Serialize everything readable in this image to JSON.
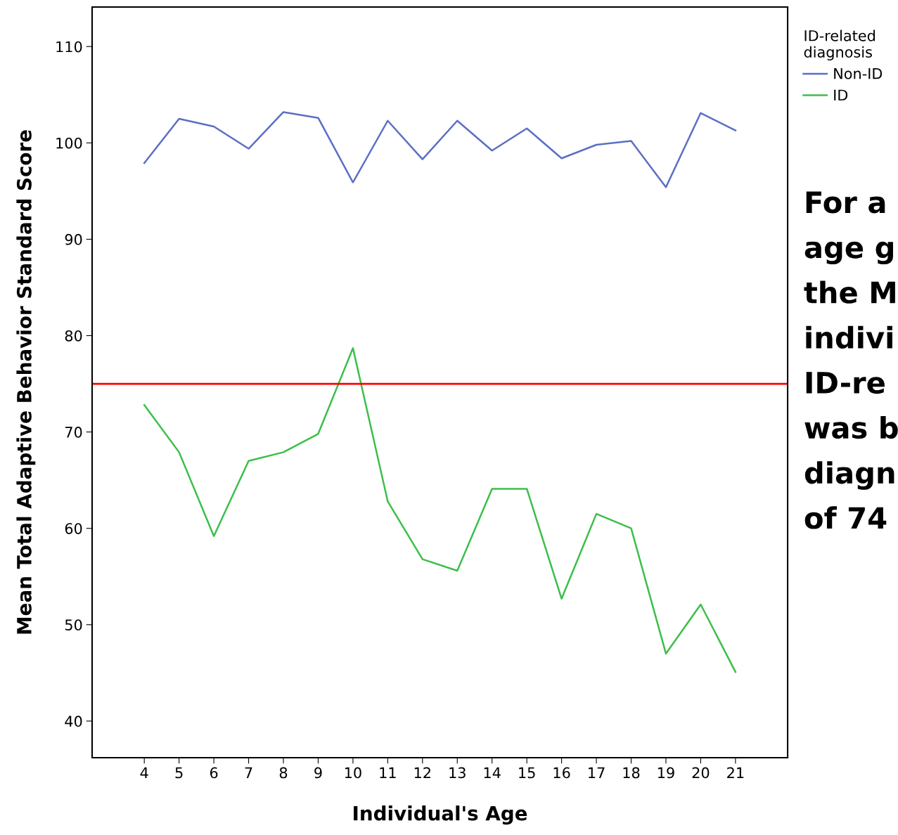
{
  "chart_data": {
    "type": "line",
    "xlabel": "Individual's Age",
    "ylabel": "Mean Total Adaptive Behavior Standard Score",
    "legend_title": "ID-related\ndiagnosis",
    "categories": [
      "4",
      "5",
      "6",
      "7",
      "8",
      "9",
      "10",
      "11",
      "12",
      "13",
      "14",
      "15",
      "16",
      "17",
      "18",
      "19",
      "20",
      "21"
    ],
    "series": [
      {
        "name": "Non-ID",
        "color": "#5b6fc4",
        "values": [
          97.9,
          102.5,
          101.7,
          99.4,
          103.2,
          102.6,
          95.9,
          102.3,
          98.3,
          102.3,
          99.2,
          101.5,
          98.4,
          99.8,
          100.2,
          95.4,
          103.1,
          101.3
        ]
      },
      {
        "name": "ID",
        "color": "#3cbf4a",
        "values": [
          72.8,
          67.9,
          59.2,
          67.0,
          67.9,
          69.8,
          78.7,
          62.8,
          56.8,
          55.6,
          64.1,
          64.1,
          52.7,
          61.5,
          60.0,
          47.0,
          52.1,
          45.1
        ]
      }
    ],
    "ylim": [
      36.2,
      114.1
    ],
    "yticks": [
      40,
      50,
      60,
      70,
      80,
      90,
      100,
      110
    ],
    "grid": false,
    "legend": "top right",
    "marker": "none",
    "line_style": "solid",
    "ref_lines": [
      {
        "axis": "y",
        "value": 75,
        "color": "#ff0000"
      }
    ],
    "annotations": [
      "For a",
      "age g",
      "the M",
      "indivi",
      "ID-re",
      "was b",
      "diagn",
      "of 74"
    ]
  }
}
